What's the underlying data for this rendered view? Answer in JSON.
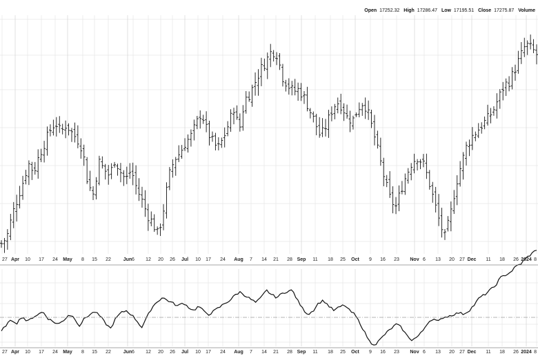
{
  "header": {
    "open_label": "Open",
    "open_value": "17252.32",
    "high_label": "High",
    "high_value": "17286.47",
    "low_label": "Low",
    "low_value": "17195.51",
    "close_label": "Close",
    "close_value": "17275.87",
    "volume_label": "Volume"
  },
  "colors": {
    "grid": "#e6e6e6",
    "bar": "#111111",
    "line": "#111111",
    "refline": "#9a9a9a",
    "axis": "#888888"
  },
  "chart_data": [
    {
      "type": "ohlc",
      "x_axis": {
        "ticks": [
          {
            "label": "27",
            "major": false
          },
          {
            "label": "Apr",
            "major": true
          },
          {
            "label": "10",
            "major": false
          },
          {
            "label": "17",
            "major": false
          },
          {
            "label": "24",
            "major": false
          },
          {
            "label": "May",
            "major": true
          },
          {
            "label": "8",
            "major": false
          },
          {
            "label": "15",
            "major": false
          },
          {
            "label": "22",
            "major": false
          },
          {
            "label": "Jun",
            "major": true
          },
          {
            "label": "6",
            "major": false
          },
          {
            "label": "12",
            "major": false
          },
          {
            "label": "20",
            "major": false
          },
          {
            "label": "26",
            "major": false
          },
          {
            "label": "Jul",
            "major": true
          },
          {
            "label": "10",
            "major": false
          },
          {
            "label": "17",
            "major": false
          },
          {
            "label": "24",
            "major": false
          },
          {
            "label": "Aug",
            "major": true
          },
          {
            "label": "7",
            "major": false
          },
          {
            "label": "14",
            "major": false
          },
          {
            "label": "21",
            "major": false
          },
          {
            "label": "28",
            "major": false
          },
          {
            "label": "Sep",
            "major": true
          },
          {
            "label": "11",
            "major": false
          },
          {
            "label": "18",
            "major": false
          },
          {
            "label": "25",
            "major": false
          },
          {
            "label": "Oct",
            "major": true
          },
          {
            "label": "9",
            "major": false
          },
          {
            "label": "16",
            "major": false
          },
          {
            "label": "23",
            "major": false
          },
          {
            "label": "Nov",
            "major": true
          },
          {
            "label": "6",
            "major": false
          },
          {
            "label": "13",
            "major": false
          },
          {
            "label": "20",
            "major": false
          },
          {
            "label": "27",
            "major": false
          },
          {
            "label": "Dec",
            "major": true
          },
          {
            "label": "11",
            "major": false
          },
          {
            "label": "18",
            "major": false
          },
          {
            "label": "26",
            "major": false
          },
          {
            "label": "2024",
            "major": true
          },
          {
            "label": "8",
            "major": false
          }
        ]
      },
      "y_axis": {
        "range": [
          0.0,
          1.0
        ],
        "shown": false
      },
      "close_path": [
        0.03,
        0.06,
        0.17,
        0.25,
        0.33,
        0.42,
        0.38,
        0.46,
        0.52,
        0.58,
        0.62,
        0.57,
        0.61,
        0.57,
        0.54,
        0.49,
        0.32,
        0.27,
        0.43,
        0.39,
        0.36,
        0.44,
        0.38,
        0.34,
        0.39,
        0.3,
        0.24,
        0.17,
        0.13,
        0.07,
        0.2,
        0.36,
        0.44,
        0.47,
        0.52,
        0.55,
        0.61,
        0.67,
        0.58,
        0.53,
        0.49,
        0.54,
        0.61,
        0.69,
        0.58,
        0.73,
        0.76,
        0.82,
        0.88,
        0.92,
        0.97,
        0.95,
        0.84,
        0.8,
        0.77,
        0.78,
        0.74,
        0.68,
        0.62,
        0.55,
        0.6,
        0.67,
        0.72,
        0.7,
        0.64,
        0.63,
        0.69,
        0.72,
        0.65,
        0.55,
        0.44,
        0.33,
        0.24,
        0.21,
        0.3,
        0.37,
        0.43,
        0.45,
        0.42,
        0.34,
        0.24,
        0.14,
        0.06,
        0.16,
        0.31,
        0.41,
        0.5,
        0.55,
        0.58,
        0.61,
        0.64,
        0.68,
        0.74,
        0.8,
        0.82,
        0.88,
        0.94,
        1.0,
        0.98,
        0.95
      ],
      "bar_count": 176
    },
    {
      "type": "line",
      "reference_line": true,
      "values": [
        0.25,
        0.38,
        0.45,
        0.4,
        0.52,
        0.42,
        0.5,
        0.55,
        0.6,
        0.48,
        0.42,
        0.38,
        0.45,
        0.55,
        0.5,
        0.35,
        0.48,
        0.55,
        0.6,
        0.52,
        0.4,
        0.3,
        0.48,
        0.58,
        0.62,
        0.55,
        0.45,
        0.32,
        0.5,
        0.68,
        0.78,
        0.85,
        0.8,
        0.75,
        0.7,
        0.76,
        0.68,
        0.62,
        0.7,
        0.6,
        0.55,
        0.62,
        0.68,
        0.75,
        0.8,
        0.9,
        0.95,
        0.88,
        0.82,
        0.76,
        0.85,
        0.98,
        0.9,
        0.85,
        0.92,
        0.96,
        0.98,
        0.8,
        0.65,
        0.55,
        0.62,
        0.75,
        0.8,
        0.7,
        0.62,
        0.68,
        0.72,
        0.62,
        0.55,
        0.4,
        0.22,
        0.05,
        0.02,
        0.12,
        0.22,
        0.3,
        0.38,
        0.32,
        0.18,
        0.1,
        0.15,
        0.25,
        0.4,
        0.48,
        0.42,
        0.5,
        0.52,
        0.55,
        0.58,
        0.56,
        0.62,
        0.72,
        0.85,
        0.9,
        0.98,
        1.05,
        1.2,
        1.25,
        1.3,
        1.4,
        1.45,
        1.55,
        1.62,
        1.7
      ]
    }
  ]
}
